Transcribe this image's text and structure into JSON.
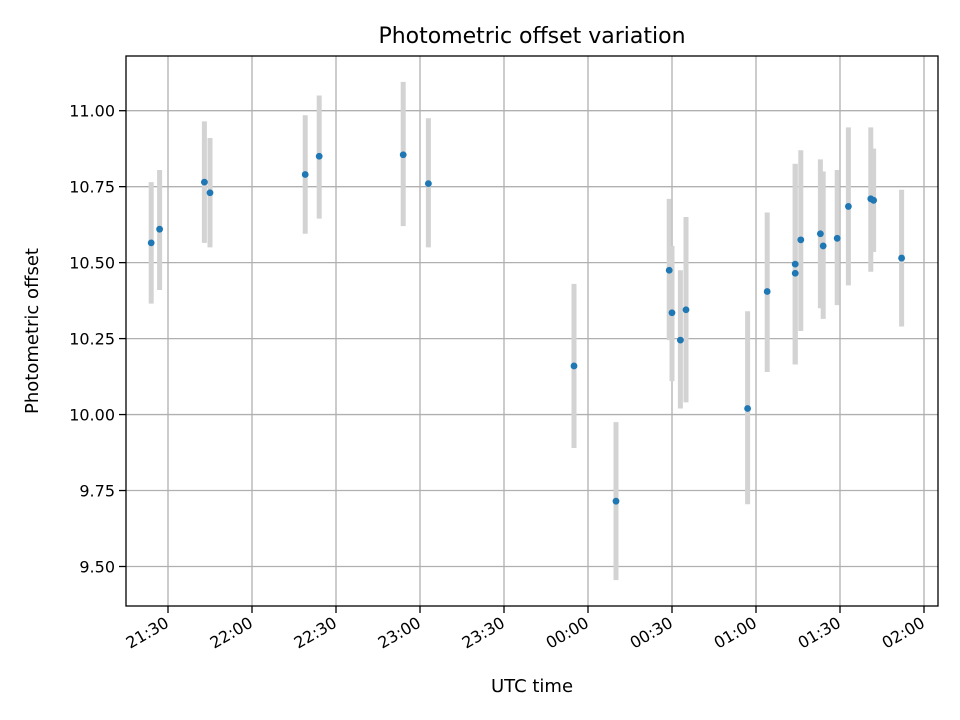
{
  "chart_data": {
    "type": "scatter",
    "title": "Photometric offset variation",
    "xlabel": "UTC time",
    "ylabel": "Photometric offset",
    "x_unit": "HH:MM (UTC), times after 24:00 fall on the following day",
    "xlim": [
      "21:15",
      "02:05"
    ],
    "ylim": [
      9.37,
      11.18
    ],
    "x_ticks": [
      "21:30",
      "22:00",
      "22:30",
      "23:00",
      "23:30",
      "00:00",
      "00:30",
      "01:00",
      "01:30",
      "02:00"
    ],
    "y_ticks": [
      "9.50",
      "9.75",
      "10.00",
      "10.25",
      "10.50",
      "10.75",
      "11.00"
    ],
    "grid": true,
    "marker_color": "#1f77b4",
    "errorbar_color": "#d3d3d3",
    "series": [
      {
        "points": [
          {
            "x": "21:24",
            "y": 10.565,
            "lo": 10.365,
            "hi": 10.765
          },
          {
            "x": "21:27",
            "y": 10.61,
            "lo": 10.41,
            "hi": 10.805
          },
          {
            "x": "21:43",
            "y": 10.765,
            "lo": 10.565,
            "hi": 10.965
          },
          {
            "x": "21:45",
            "y": 10.73,
            "lo": 10.55,
            "hi": 10.91
          },
          {
            "x": "22:19",
            "y": 10.79,
            "lo": 10.595,
            "hi": 10.985
          },
          {
            "x": "22:24",
            "y": 10.85,
            "lo": 10.645,
            "hi": 11.05
          },
          {
            "x": "22:54",
            "y": 10.855,
            "lo": 10.62,
            "hi": 11.095
          },
          {
            "x": "23:03",
            "y": 10.76,
            "lo": 10.55,
            "hi": 10.975
          },
          {
            "x": "23:55",
            "y": 10.16,
            "lo": 9.89,
            "hi": 10.43
          },
          {
            "x": "00:10",
            "y": 9.715,
            "lo": 9.455,
            "hi": 9.975
          },
          {
            "x": "00:29",
            "y": 10.475,
            "lo": 10.245,
            "hi": 10.71
          },
          {
            "x": "00:30",
            "y": 10.335,
            "lo": 10.11,
            "hi": 10.555
          },
          {
            "x": "00:33",
            "y": 10.245,
            "lo": 10.02,
            "hi": 10.475
          },
          {
            "x": "00:35",
            "y": 10.345,
            "lo": 10.04,
            "hi": 10.65
          },
          {
            "x": "00:57",
            "y": 10.02,
            "lo": 9.705,
            "hi": 10.34
          },
          {
            "x": "01:04",
            "y": 10.405,
            "lo": 10.14,
            "hi": 10.665
          },
          {
            "x": "01:14",
            "y": 10.465,
            "lo": 10.165,
            "hi": 10.825
          },
          {
            "x": "01:14",
            "y": 10.495,
            "lo": 10.165,
            "hi": 10.825
          },
          {
            "x": "01:16",
            "y": 10.575,
            "lo": 10.275,
            "hi": 10.87
          },
          {
            "x": "01:23",
            "y": 10.595,
            "lo": 10.35,
            "hi": 10.84
          },
          {
            "x": "01:24",
            "y": 10.555,
            "lo": 10.315,
            "hi": 10.8
          },
          {
            "x": "01:29",
            "y": 10.58,
            "lo": 10.36,
            "hi": 10.805
          },
          {
            "x": "01:33",
            "y": 10.685,
            "lo": 10.425,
            "hi": 10.945
          },
          {
            "x": "01:41",
            "y": 10.71,
            "lo": 10.47,
            "hi": 10.945
          },
          {
            "x": "01:42",
            "y": 10.705,
            "lo": 10.535,
            "hi": 10.875
          },
          {
            "x": "01:52",
            "y": 10.515,
            "lo": 10.29,
            "hi": 10.74
          }
        ]
      }
    ]
  }
}
